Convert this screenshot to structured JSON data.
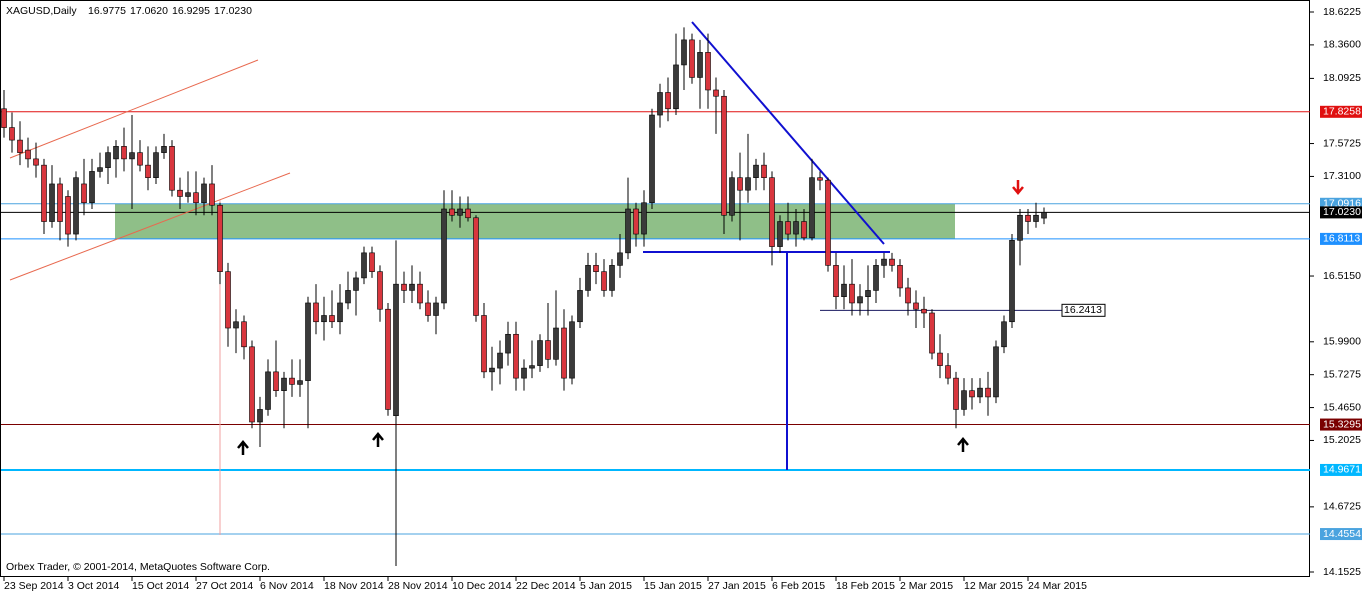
{
  "chart_data": {
    "type": "candlestick",
    "title": "XAGUSD,Daily",
    "header_values": [
      {
        "value": 16.9775,
        "label": "16.9775"
      },
      {
        "value": 17.062,
        "label": "17.0620"
      },
      {
        "value": 16.9295,
        "label": "16.9295"
      },
      {
        "value": 17.023,
        "label": "17.0230"
      }
    ],
    "footer": "Orbex Trader, © 2001-2014, MetaQuotes Software Corp.",
    "bull_color": "#3a3a3a",
    "bear_color": "#d9363e",
    "categories": [
      "23 Sep 2014",
      null,
      null,
      null,
      null,
      null,
      null,
      null,
      "3 Oct 2014",
      null,
      null,
      null,
      null,
      null,
      null,
      null,
      "15 Oct 2014",
      null,
      null,
      null,
      null,
      null,
      null,
      null,
      "27 Oct 2014",
      null,
      null,
      null,
      null,
      null,
      null,
      null,
      "6 Nov 2014",
      null,
      null,
      null,
      null,
      null,
      null,
      null,
      "18 Nov 2014",
      null,
      null,
      null,
      null,
      null,
      null,
      null,
      "28 Nov 2014",
      null,
      null,
      null,
      null,
      null,
      null,
      null,
      "10 Dec 2014",
      null,
      null,
      null,
      null,
      null,
      null,
      null,
      "22 Dec 2014",
      null,
      null,
      null,
      null,
      null,
      null,
      null,
      "5 Jan 2015",
      null,
      null,
      null,
      null,
      null,
      null,
      null,
      "15 Jan 2015",
      null,
      null,
      null,
      null,
      null,
      null,
      null,
      "27 Jan 2015",
      null,
      null,
      null,
      null,
      null,
      null,
      null,
      "6 Feb 2015",
      null,
      null,
      null,
      null,
      null,
      null,
      null,
      "18 Feb 2015",
      null,
      null,
      null,
      null,
      null,
      null,
      null,
      "2 Mar 2015",
      null,
      null,
      null,
      null,
      null,
      null,
      null,
      "12 Mar 2015",
      null,
      null,
      null,
      null,
      null,
      null,
      null,
      "24 Mar 2015",
      null,
      null
    ],
    "open": [
      17.85,
      17.7,
      17.6,
      17.52,
      17.45,
      17.4,
      16.95,
      17.25,
      17.15,
      16.85,
      17.25,
      17.1,
      17.35,
      17.38,
      17.45,
      17.55,
      17.45,
      17.5,
      17.4,
      17.3,
      17.5,
      17.55,
      17.2,
      17.15,
      17.18,
      17.1,
      17.25,
      17.08,
      16.55,
      16.1,
      16.15,
      15.95,
      15.35,
      15.45,
      15.75,
      15.6,
      15.7,
      15.65,
      15.68,
      16.3,
      16.15,
      16.2,
      16.15,
      16.3,
      16.4,
      16.5,
      16.7,
      16.55,
      16.25,
      15.4,
      16.45,
      16.4,
      16.45,
      16.3,
      16.2,
      16.3,
      17.05,
      17.0,
      17.05,
      16.98,
      16.2,
      15.75,
      15.78,
      15.9,
      16.05,
      15.7,
      15.78,
      15.8,
      16.0,
      15.85,
      16.1,
      15.7,
      16.15,
      16.4,
      16.6,
      16.55,
      16.4,
      16.6,
      16.7,
      17.05,
      16.85,
      17.1,
      17.8,
      17.98,
      17.85,
      18.2,
      18.4,
      18.1,
      18.3,
      18.0,
      17.95,
      17.0,
      17.3,
      17.2,
      17.3,
      17.4,
      17.3,
      16.75,
      16.95,
      16.85,
      16.95,
      16.82,
      17.3,
      17.28,
      16.6,
      16.35,
      16.45,
      16.3,
      16.35,
      16.4,
      16.6,
      16.65,
      16.6,
      16.42,
      16.3,
      16.25,
      16.22,
      15.9,
      15.8,
      15.7,
      15.45,
      15.6,
      15.55,
      15.62,
      15.55,
      15.95,
      16.15,
      16.8,
      17.0,
      16.95,
      16.9775
    ],
    "high": [
      18.0,
      17.82,
      17.75,
      17.62,
      17.58,
      17.45,
      17.4,
      17.3,
      17.2,
      17.35,
      17.45,
      17.45,
      17.5,
      17.55,
      17.6,
      17.7,
      17.8,
      17.6,
      17.55,
      17.55,
      17.65,
      17.6,
      17.3,
      17.35,
      17.35,
      17.3,
      17.4,
      17.1,
      16.62,
      16.25,
      16.2,
      16.0,
      15.55,
      15.85,
      16.0,
      15.75,
      15.85,
      15.85,
      16.35,
      16.45,
      16.35,
      16.4,
      16.45,
      16.55,
      16.55,
      16.75,
      16.75,
      16.6,
      16.3,
      16.8,
      16.55,
      16.6,
      16.55,
      16.4,
      16.35,
      17.2,
      17.2,
      17.15,
      17.15,
      17.0,
      16.3,
      15.95,
      16.0,
      16.15,
      16.15,
      15.85,
      16.0,
      16.05,
      16.3,
      16.4,
      16.25,
      16.2,
      16.5,
      16.7,
      16.7,
      16.65,
      16.65,
      16.85,
      17.3,
      17.1,
      17.2,
      17.85,
      18.05,
      18.1,
      18.45,
      18.5,
      18.45,
      18.4,
      18.45,
      18.1,
      18.0,
      17.35,
      17.5,
      17.65,
      17.45,
      17.5,
      17.35,
      17.0,
      17.1,
      17.05,
      17.05,
      17.45,
      17.35,
      17.3,
      16.7,
      16.6,
      16.65,
      16.45,
      16.6,
      16.65,
      16.7,
      16.7,
      16.65,
      16.5,
      16.4,
      16.35,
      16.25,
      16.05,
      15.9,
      15.75,
      15.7,
      15.7,
      15.7,
      15.75,
      16.0,
      16.2,
      16.85,
      17.05,
      17.05,
      17.1,
      17.062
    ],
    "low": [
      17.62,
      17.5,
      17.4,
      17.38,
      17.3,
      16.85,
      16.9,
      16.8,
      16.75,
      16.8,
      17.0,
      17.05,
      17.3,
      17.25,
      17.3,
      17.35,
      17.05,
      17.35,
      17.2,
      17.25,
      17.45,
      17.15,
      17.05,
      17.1,
      17.0,
      17.0,
      17.0,
      16.45,
      15.95,
      15.9,
      15.85,
      15.3,
      15.15,
      15.4,
      15.55,
      15.3,
      15.55,
      15.55,
      15.3,
      16.05,
      16.0,
      16.1,
      16.05,
      16.25,
      16.2,
      16.45,
      16.5,
      16.15,
      15.4,
      14.2,
      16.3,
      16.3,
      16.25,
      16.15,
      16.05,
      16.25,
      16.95,
      16.9,
      16.95,
      16.15,
      15.7,
      15.6,
      15.65,
      15.8,
      15.6,
      15.6,
      15.7,
      15.75,
      15.78,
      15.8,
      15.6,
      15.65,
      16.1,
      16.35,
      16.45,
      16.35,
      16.35,
      16.5,
      16.65,
      16.75,
      16.75,
      17.05,
      17.7,
      17.75,
      17.8,
      18.0,
      18.05,
      17.85,
      17.85,
      17.65,
      16.85,
      16.95,
      16.8,
      17.1,
      17.2,
      17.2,
      16.6,
      16.7,
      16.8,
      16.75,
      16.8,
      16.8,
      17.2,
      16.55,
      16.25,
      16.25,
      16.2,
      16.2,
      16.2,
      16.3,
      16.5,
      16.55,
      16.35,
      16.2,
      16.1,
      16.1,
      15.85,
      15.7,
      15.65,
      15.3,
      15.4,
      15.45,
      15.5,
      15.4,
      15.5,
      15.9,
      16.1,
      16.6,
      16.85,
      16.9,
      16.9295
    ],
    "close": [
      17.7,
      17.6,
      17.5,
      17.45,
      17.4,
      16.95,
      17.25,
      16.95,
      16.85,
      17.3,
      17.1,
      17.35,
      17.38,
      17.5,
      17.55,
      17.45,
      17.5,
      17.4,
      17.3,
      17.5,
      17.55,
      17.2,
      17.15,
      17.18,
      17.1,
      17.25,
      17.08,
      16.55,
      16.1,
      16.15,
      15.95,
      15.35,
      15.45,
      15.75,
      15.6,
      15.7,
      15.65,
      15.68,
      16.3,
      16.15,
      16.2,
      16.15,
      16.3,
      16.4,
      16.5,
      16.7,
      16.55,
      16.25,
      15.45,
      16.45,
      16.4,
      16.45,
      16.3,
      16.2,
      16.3,
      17.05,
      17.0,
      17.05,
      16.98,
      16.2,
      15.75,
      15.78,
      15.9,
      16.05,
      15.7,
      15.78,
      15.8,
      16.0,
      15.85,
      16.1,
      15.7,
      16.15,
      16.4,
      16.6,
      16.55,
      16.4,
      16.6,
      16.7,
      17.05,
      16.85,
      17.1,
      17.8,
      17.98,
      17.85,
      18.2,
      18.4,
      18.1,
      18.3,
      18.0,
      17.95,
      17.0,
      17.3,
      17.2,
      17.3,
      17.4,
      17.3,
      16.75,
      16.95,
      16.85,
      16.95,
      16.82,
      17.3,
      17.28,
      16.6,
      16.35,
      16.45,
      16.3,
      16.35,
      16.4,
      16.6,
      16.65,
      16.6,
      16.42,
      16.3,
      16.25,
      16.22,
      15.9,
      15.8,
      15.7,
      15.45,
      15.6,
      15.55,
      15.62,
      15.55,
      15.95,
      16.15,
      16.8,
      17.0,
      16.95,
      17.0,
      17.023
    ],
    "ylim": [
      14.1525,
      18.6225
    ],
    "yticks": [
      18.6225,
      {
        "value": 18.36,
        "label": "18.3600"
      },
      18.0925,
      17.5725,
      {
        "value": 17.31,
        "label": "17.3100"
      },
      {
        "value": 16.515,
        "label": "16.5150"
      },
      {
        "value": 15.99,
        "label": "15.9900"
      },
      15.7275,
      {
        "value": 15.465,
        "label": "15.4650"
      },
      15.2025,
      14.6725,
      14.1525
    ],
    "levels": [
      {
        "value": 17.8258,
        "color": "#e01010"
      },
      {
        "value": 17.0916,
        "color": "#4aa3df"
      },
      {
        "value": 17.023,
        "label": "17.0230",
        "color": "#000000"
      },
      {
        "value": 16.8113,
        "color": "#1e90ff"
      },
      {
        "value": 15.3295,
        "color": "#7a0000"
      },
      {
        "value": 14.9671,
        "color": "#00b7ff"
      },
      {
        "value": 14.4554,
        "color": "#4aa3df"
      }
    ],
    "zone_color": "#8fbf88",
    "price_label": {
      "value": 16.2413,
      "color": "#1a1a60"
    }
  }
}
